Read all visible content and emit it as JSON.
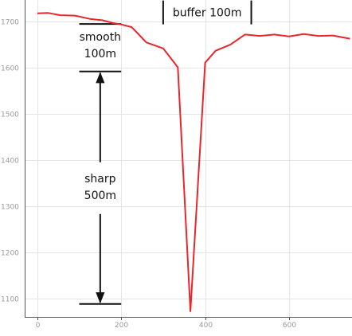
{
  "chart_data": {
    "type": "line",
    "title": "",
    "xlabel": "",
    "ylabel": "",
    "xlim": [
      -30,
      750
    ],
    "ylim": [
      1060,
      1740
    ],
    "grid": true,
    "x_ticks": [
      0,
      200,
      400,
      600
    ],
    "y_ticks": [
      1100,
      1200,
      1300,
      1400,
      1500,
      1600,
      1700
    ],
    "series": [
      {
        "color": "#e8262c",
        "x": [
          0,
          25,
          55,
          90,
          125,
          155,
          180,
          200,
          225,
          260,
          300,
          335,
          365,
          400,
          425,
          460,
          495,
          530,
          565,
          600,
          635,
          670,
          705,
          745
        ],
        "y": [
          1718,
          1719,
          1714,
          1713,
          1706,
          1703,
          1697,
          1694,
          1688,
          1655,
          1642,
          1601,
          1072,
          1611,
          1637,
          1650,
          1672,
          1669,
          1672,
          1668,
          1673,
          1669,
          1670,
          1663
        ]
      }
    ],
    "annotations": {
      "buffer": {
        "text": "buffer 100m",
        "x_start": 300,
        "x_end": 510,
        "y": 1720
      },
      "smooth": {
        "line1": "smooth",
        "line2": "100m",
        "x_start": 100,
        "x_end": 200,
        "y_top": 1695,
        "y_bottom": 1592
      },
      "sharp": {
        "line1": "sharp",
        "line2": "500m",
        "x_start": 100,
        "x_end": 200,
        "y_top": 1592,
        "y_bottom": 1088
      }
    }
  },
  "colors": {
    "series": "#e8262c",
    "grid": "#e4e4e4",
    "axis": "#555555",
    "tick_text": "#9a9a9a",
    "annotation": "#111111"
  }
}
